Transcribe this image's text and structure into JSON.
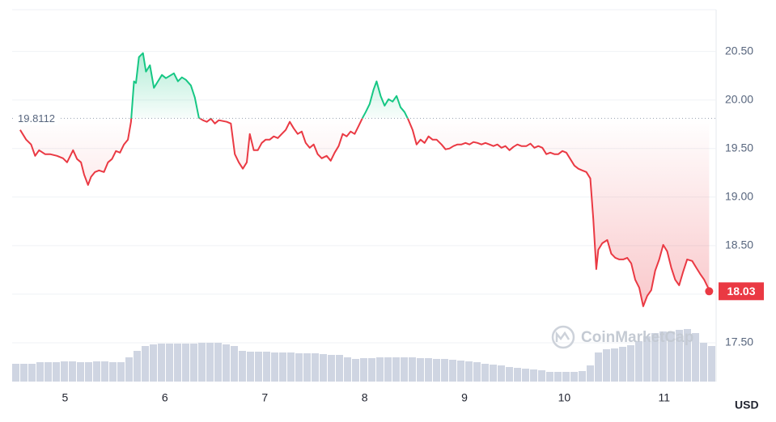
{
  "chart_data": {
    "type": "line",
    "x": [
      4.55,
      4.61,
      4.66,
      4.7,
      4.74,
      4.8,
      4.85,
      4.92,
      4.98,
      5.02,
      5.08,
      5.12,
      5.16,
      5.19,
      5.23,
      5.26,
      5.3,
      5.34,
      5.39,
      5.43,
      5.47,
      5.51,
      5.55,
      5.59,
      5.63,
      5.66,
      5.69,
      5.71,
      5.74,
      5.78,
      5.81,
      5.85,
      5.89,
      5.93,
      5.97,
      6.01,
      6.05,
      6.09,
      6.13,
      6.17,
      6.21,
      6.26,
      6.3,
      6.34,
      6.38,
      6.42,
      6.46,
      6.5,
      6.54,
      6.62,
      6.66,
      6.7,
      6.74,
      6.78,
      6.82,
      6.85,
      6.89,
      6.93,
      6.97,
      7.01,
      7.05,
      7.09,
      7.13,
      7.17,
      7.21,
      7.25,
      7.29,
      7.33,
      7.37,
      7.41,
      7.45,
      7.49,
      7.53,
      7.57,
      7.62,
      7.66,
      7.7,
      7.74,
      7.78,
      7.82,
      7.86,
      7.9,
      7.94,
      7.98,
      8.01,
      8.05,
      8.09,
      8.12,
      8.16,
      8.2,
      8.24,
      8.28,
      8.32,
      8.36,
      8.4,
      8.44,
      8.48,
      8.52,
      8.56,
      8.6,
      8.64,
      8.68,
      8.72,
      8.77,
      8.81,
      8.85,
      8.89,
      8.93,
      8.97,
      9.01,
      9.05,
      9.09,
      9.13,
      9.17,
      9.21,
      9.25,
      9.29,
      9.33,
      9.37,
      9.41,
      9.45,
      9.49,
      9.53,
      9.57,
      9.62,
      9.66,
      9.7,
      9.74,
      9.78,
      9.82,
      9.86,
      9.9,
      9.94,
      9.98,
      10.02,
      10.06,
      10.1,
      10.14,
      10.18,
      10.22,
      10.26,
      10.29,
      10.32,
      10.34,
      10.38,
      10.43,
      10.47,
      10.51,
      10.55,
      10.59,
      10.63,
      10.67,
      10.71,
      10.75,
      10.79,
      10.83,
      10.87,
      10.91,
      10.95,
      10.99,
      11.03,
      11.07,
      11.11,
      11.15,
      11.19,
      11.23,
      11.28,
      11.32,
      11.36,
      11.4,
      11.44,
      11.45
    ],
    "values": [
      19.692,
      19.592,
      19.542,
      19.425,
      19.483,
      19.442,
      19.442,
      19.425,
      19.4,
      19.358,
      19.483,
      19.392,
      19.358,
      19.233,
      19.125,
      19.208,
      19.258,
      19.275,
      19.258,
      19.358,
      19.392,
      19.475,
      19.458,
      19.542,
      19.592,
      19.775,
      20.192,
      20.175,
      20.442,
      20.483,
      20.292,
      20.358,
      20.125,
      20.192,
      20.258,
      20.225,
      20.25,
      20.275,
      20.192,
      20.233,
      20.208,
      20.15,
      20.025,
      19.817,
      19.792,
      19.775,
      19.808,
      19.758,
      19.792,
      19.775,
      19.758,
      19.442,
      19.358,
      19.292,
      19.358,
      19.65,
      19.483,
      19.483,
      19.558,
      19.592,
      19.592,
      19.625,
      19.608,
      19.65,
      19.692,
      19.775,
      19.708,
      19.65,
      19.675,
      19.558,
      19.508,
      19.542,
      19.442,
      19.4,
      19.425,
      19.375,
      19.458,
      19.525,
      19.65,
      19.625,
      19.675,
      19.65,
      19.733,
      19.817,
      19.875,
      19.958,
      20.108,
      20.192,
      20.042,
      19.942,
      20.008,
      19.983,
      20.042,
      19.925,
      19.875,
      19.792,
      19.692,
      19.542,
      19.592,
      19.558,
      19.625,
      19.592,
      19.592,
      19.542,
      19.492,
      19.5,
      19.525,
      19.542,
      19.542,
      19.558,
      19.542,
      19.567,
      19.558,
      19.542,
      19.558,
      19.542,
      19.525,
      19.542,
      19.508,
      19.525,
      19.483,
      19.517,
      19.542,
      19.525,
      19.525,
      19.55,
      19.508,
      19.525,
      19.508,
      19.442,
      19.458,
      19.442,
      19.442,
      19.475,
      19.458,
      19.392,
      19.325,
      19.292,
      19.275,
      19.258,
      19.192,
      18.775,
      18.258,
      18.458,
      18.525,
      18.558,
      18.417,
      18.375,
      18.358,
      18.358,
      18.375,
      18.317,
      18.15,
      18.067,
      17.875,
      17.983,
      18.042,
      18.242,
      18.358,
      18.508,
      18.442,
      18.275,
      18.15,
      18.092,
      18.233,
      18.358,
      18.342,
      18.275,
      18.208,
      18.15,
      18.067,
      18.03
    ],
    "color_above": "#16c784",
    "color_below": "#ea3943",
    "reference": 19.8112,
    "xlim": [
      4.47,
      11.52
    ],
    "xticks": [
      5,
      6,
      7,
      8,
      9,
      10,
      11
    ],
    "ylim": [
      17.1,
      20.93
    ],
    "yticks": [
      {
        "value": 17.5,
        "label": "17.50"
      },
      {
        "value": 18,
        "label": "18.00"
      },
      {
        "value": 18.5,
        "label": "18.50"
      },
      {
        "value": 19,
        "label": "19.00"
      },
      {
        "value": 19.5,
        "label": "19.50"
      },
      {
        "value": 20,
        "label": "20.00"
      },
      {
        "value": 20.5,
        "label": "20.50"
      }
    ],
    "grid": true,
    "y_unit": "USD",
    "watermark": "CoinMarketCap",
    "volume": {
      "color": "#cfd5e2",
      "values": [
        22,
        22,
        22,
        24,
        24,
        24,
        25,
        25,
        24,
        24,
        25,
        25,
        24,
        24,
        30,
        38,
        44,
        46,
        47,
        47,
        47,
        47,
        47,
        48,
        48,
        48,
        46,
        44,
        38,
        37,
        37,
        37,
        36,
        36,
        36,
        35,
        35,
        35,
        34,
        33,
        33,
        30,
        28,
        29,
        29,
        30,
        30,
        30,
        30,
        30,
        29,
        29,
        28,
        28,
        27,
        26,
        25,
        24,
        22,
        21,
        20,
        18,
        17,
        16,
        15,
        14,
        12,
        12,
        12,
        12,
        13,
        20,
        36,
        40,
        41,
        43,
        45,
        50,
        56,
        60,
        62,
        62,
        64,
        65,
        60,
        48,
        44
      ]
    }
  }
}
